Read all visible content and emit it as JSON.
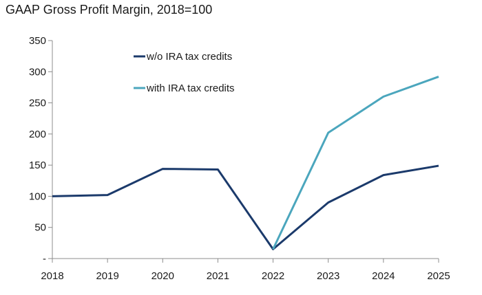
{
  "chart_data": {
    "type": "line",
    "title": "GAAP Gross Profit Margin, 2018=100",
    "xlabel": "",
    "ylabel": "",
    "x": [
      "2018",
      "2019",
      "2020",
      "2021",
      "2022",
      "2023",
      "2024",
      "2025"
    ],
    "ylim": [
      0,
      350
    ],
    "yticks": [
      0,
      50,
      100,
      150,
      200,
      250,
      300,
      350
    ],
    "ytick_labels": [
      "-",
      "50",
      "100",
      "150",
      "200",
      "250",
      "300",
      "350"
    ],
    "grid": false,
    "legend_position": "top-left",
    "series": [
      {
        "name": "w/o IRA tax credits",
        "color": "#1b3a6b",
        "values": [
          100,
          102,
          144,
          143,
          15,
          90,
          134,
          149
        ]
      },
      {
        "name": "with IRA tax credits",
        "color": "#4ba6bd",
        "values": [
          null,
          null,
          null,
          null,
          15,
          202,
          260,
          292
        ]
      }
    ]
  }
}
